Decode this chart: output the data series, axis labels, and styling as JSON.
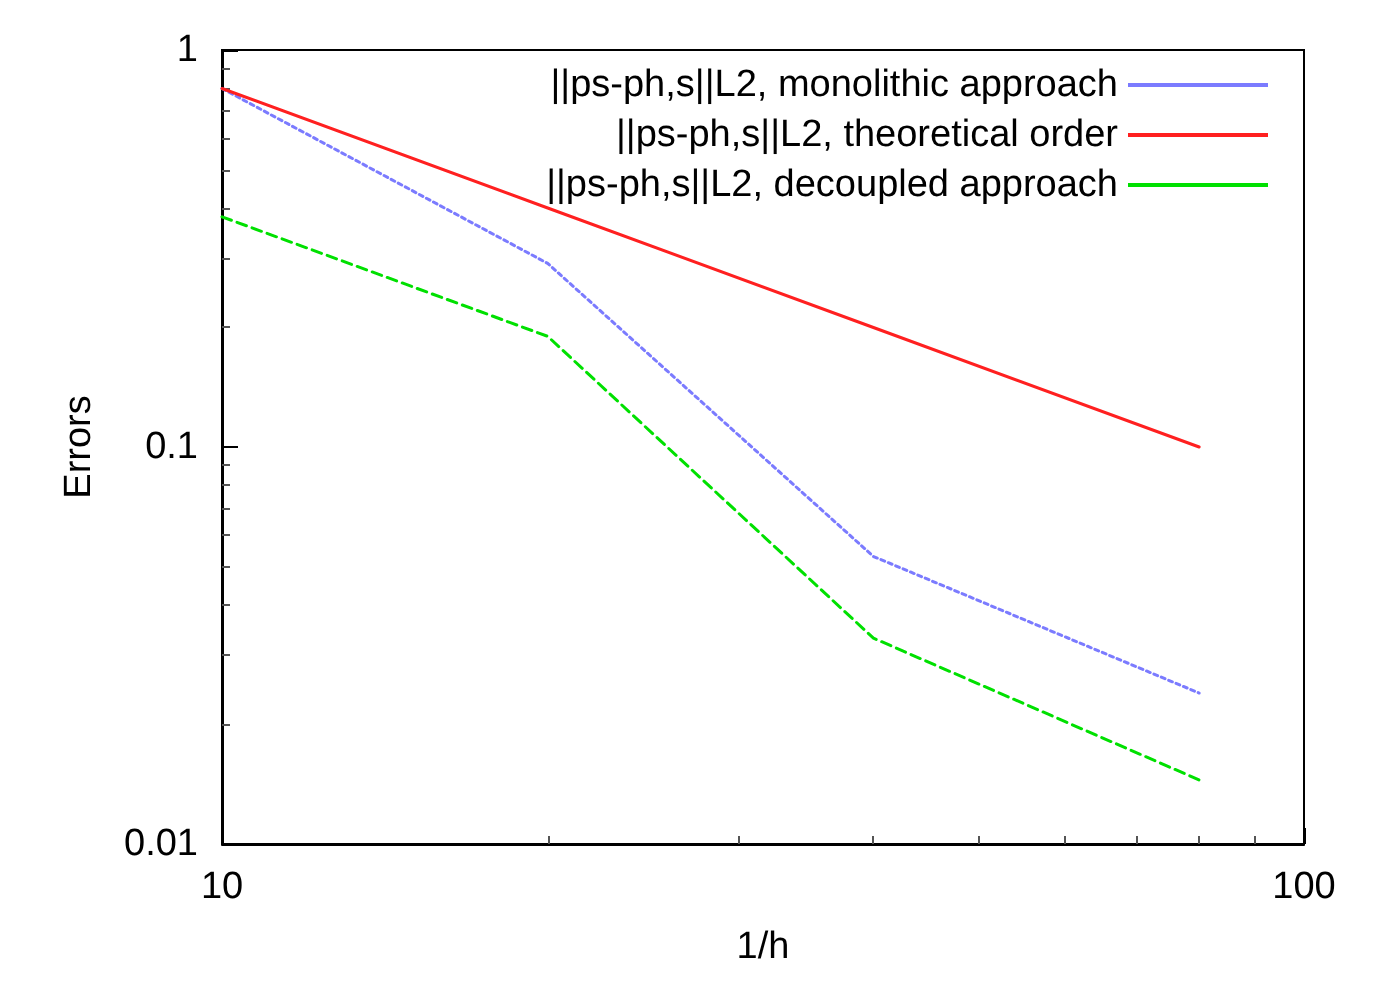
{
  "chart_data": {
    "type": "line",
    "xlabel": "1/h",
    "ylabel": "Errors",
    "log": "xy",
    "xlim": [
      10,
      100
    ],
    "xticks": [
      10,
      100
    ],
    "ylim": [
      0.01,
      1
    ],
    "yticks": [
      0.01,
      0.1,
      1
    ],
    "grid": false,
    "legend": "top right",
    "marker": "none",
    "x": [
      10,
      20,
      40,
      80
    ],
    "series": [
      {
        "name": "||ps-ph,s||L2, monolithic approach",
        "color": "#7b7bff",
        "line_style": "dotted",
        "values": [
          0.8,
          0.29,
          0.053,
          0.024
        ]
      },
      {
        "name": "||ps-ph,s||L2, theoretical order",
        "color": "#ff2020",
        "line_style": "solid",
        "values": [
          0.8,
          0.4,
          0.2,
          0.1
        ]
      },
      {
        "name": "||ps-ph,s||L2, decoupled approach",
        "color": "#00e000",
        "line_style": "dashed",
        "values": [
          0.38,
          0.19,
          0.033,
          0.0145
        ]
      }
    ]
  }
}
